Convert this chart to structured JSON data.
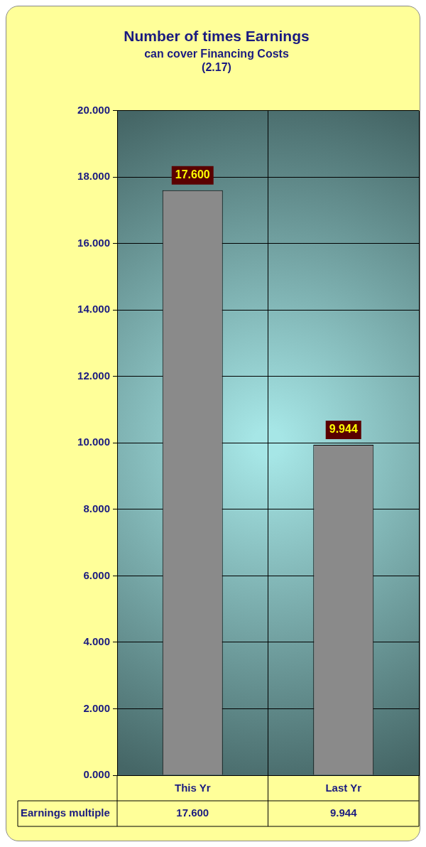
{
  "chart_data": {
    "type": "bar",
    "title": "Number of times Earnings",
    "subtitle": "can cover Financing Costs",
    "annotations": [
      "(2.17)"
    ],
    "categories": [
      "This Yr",
      "Last Yr"
    ],
    "series": [
      {
        "name": "Earnings multiple",
        "color": "#8a8a8a",
        "values": [
          17.6,
          9.944
        ],
        "value_labels": [
          "17.600",
          "9.944"
        ]
      }
    ],
    "ylim": [
      0,
      20
    ],
    "yticks": [
      {
        "value": 0,
        "label": "0.000"
      },
      {
        "value": 2,
        "label": "2.000"
      },
      {
        "value": 4,
        "label": "4.000"
      },
      {
        "value": 6,
        "label": "6.000"
      },
      {
        "value": 8,
        "label": "8.000"
      },
      {
        "value": 10,
        "label": "10.000"
      },
      {
        "value": 12,
        "label": "12.000"
      },
      {
        "value": 14,
        "label": "14.000"
      },
      {
        "value": 16,
        "label": "16.000"
      },
      {
        "value": 18,
        "label": "18.000"
      },
      {
        "value": 20,
        "label": "20.000"
      }
    ],
    "grid": true,
    "legend": false
  }
}
